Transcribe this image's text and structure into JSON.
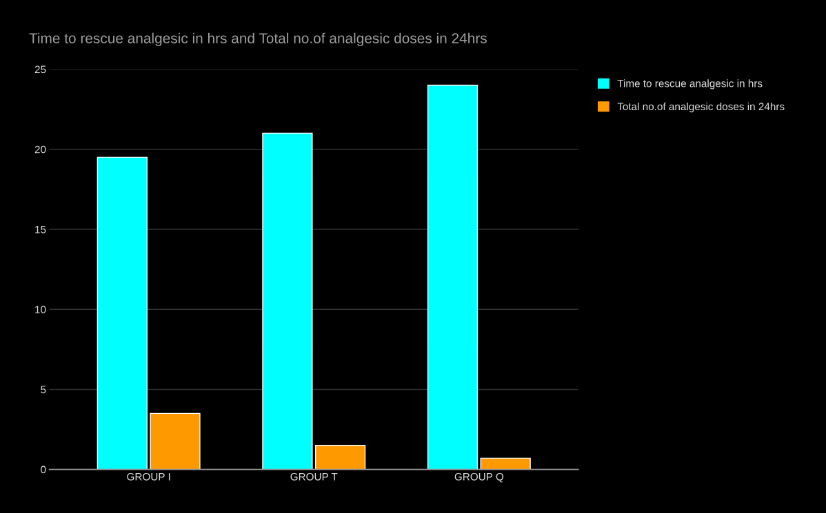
{
  "chart_data": {
    "type": "bar",
    "title": "Time to rescue analgesic in hrs and Total no.of analgesic doses in 24hrs",
    "categories": [
      "GROUP I",
      "GROUP T",
      "GROUP Q"
    ],
    "series": [
      {
        "name": "Time to rescue analgesic in hrs",
        "color": "#00ffff",
        "values": [
          19.5,
          21,
          24
        ]
      },
      {
        "name": "Total no.of analgesic doses in 24hrs",
        "color": "#ff9900",
        "values": [
          3.5,
          1.5,
          0.7
        ]
      }
    ],
    "ylim": [
      0,
      25
    ],
    "yticks": [
      0,
      5,
      10,
      15,
      20,
      25
    ],
    "grid": "y",
    "legend": "right"
  }
}
